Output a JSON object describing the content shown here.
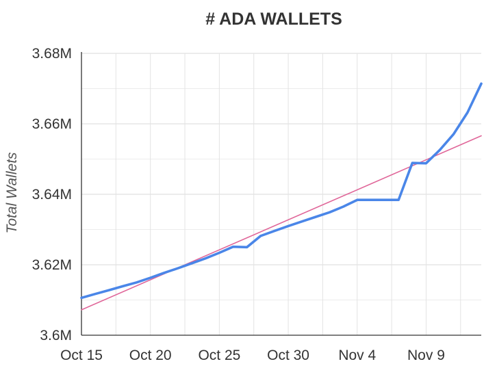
{
  "chart_data": {
    "type": "line",
    "title": "# ADA WALLETS",
    "xlabel": "",
    "ylabel": "Total Wallets",
    "x_ticks": [
      "Oct 15",
      "Oct 20",
      "Oct 25",
      "Oct 30",
      "Nov 4",
      "Nov 9"
    ],
    "y_ticks": [
      "3.6M",
      "3.62M",
      "3.64M",
      "3.66M",
      "3.68M"
    ],
    "ylim": [
      3600000,
      3680000
    ],
    "xlim": [
      "Oct 15",
      "Nov 13"
    ],
    "grid": true,
    "series": [
      {
        "role": "data",
        "color": "#4a86e8",
        "x": [
          "Oct 15",
          "Oct 16",
          "Oct 17",
          "Oct 18",
          "Oct 19",
          "Oct 20",
          "Oct 21",
          "Oct 22",
          "Oct 23",
          "Oct 24",
          "Oct 25",
          "Oct 26",
          "Oct 27",
          "Oct 28",
          "Oct 29",
          "Oct 30",
          "Oct 31",
          "Nov 1",
          "Nov 2",
          "Nov 3",
          "Nov 4",
          "Nov 5",
          "Nov 6",
          "Nov 7",
          "Nov 8",
          "Nov 9",
          "Nov 10",
          "Nov 11",
          "Nov 12",
          "Nov 13"
        ],
        "values": [
          3610600,
          3611700,
          3612800,
          3613900,
          3615000,
          3616300,
          3617700,
          3619000,
          3620400,
          3621800,
          3623400,
          3625100,
          3625000,
          3628200,
          3629600,
          3631000,
          3632300,
          3633600,
          3634900,
          3636500,
          3638400,
          3638400,
          3638400,
          3638400,
          3648900,
          3648800,
          3652600,
          3657100,
          3663200,
          3671400
        ]
      },
      {
        "role": "trendline",
        "color": "#e06699",
        "x": [
          "Oct 15",
          "Nov 13"
        ],
        "values": [
          3607200,
          3656600
        ]
      }
    ]
  }
}
